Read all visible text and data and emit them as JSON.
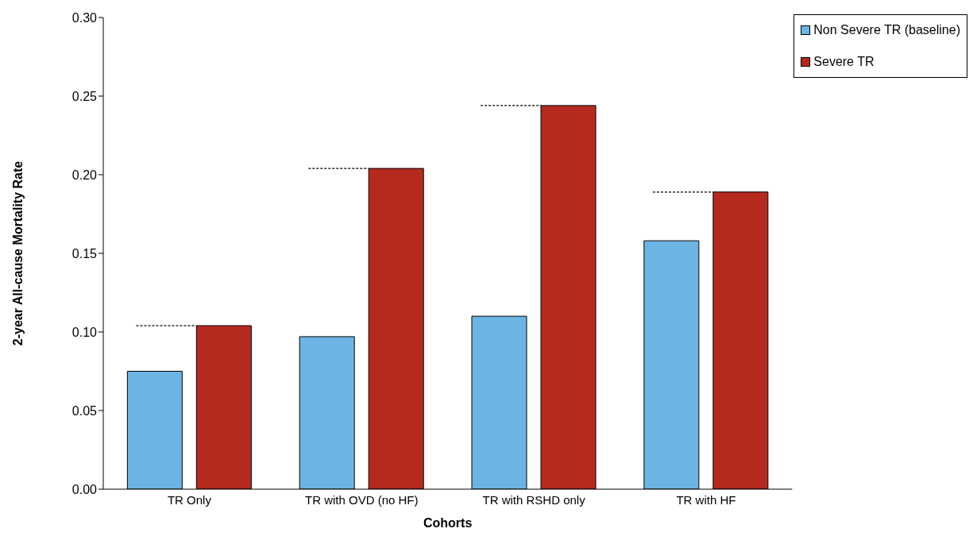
{
  "chart_data": {
    "type": "bar",
    "xlabel": "Cohorts",
    "ylabel": "2-year All-cause Mortality Rate",
    "categories": [
      "TR Only",
      "TR with OVD (no HF)",
      "TR with RSHD only",
      "TR with HF"
    ],
    "series": [
      {
        "name": "Non Severe TR (baseline)",
        "color": "#6cb4e4",
        "values": [
          0.075,
          0.097,
          0.11,
          0.158
        ]
      },
      {
        "name": "Severe TR",
        "color": "#b52a1e",
        "values": [
          0.104,
          0.204,
          0.244,
          0.189
        ]
      }
    ],
    "ylim": [
      0,
      0.3
    ],
    "yticks": [
      {
        "value": 0,
        "label": "0.00"
      },
      {
        "value": 0.05,
        "label": "0.05"
      },
      {
        "value": 0.1,
        "label": "0.10"
      },
      {
        "value": 0.15,
        "label": "0.15"
      },
      {
        "value": 0.2,
        "label": "0.20"
      },
      {
        "value": 0.25,
        "label": "0.25"
      },
      {
        "value": 0.3,
        "label": "0.30"
      }
    ],
    "ref_lines": [
      {
        "axis": "y",
        "value": 0.104,
        "color": "#000000",
        "line_style": "dotted"
      },
      {
        "axis": "y",
        "value": 0.204,
        "color": "#000000",
        "line_style": "dotted"
      },
      {
        "axis": "y",
        "value": 0.244,
        "color": "#000000",
        "line_style": "dotted"
      },
      {
        "axis": "y",
        "value": 0.189,
        "color": "#000000",
        "line_style": "dotted"
      }
    ],
    "grid": false,
    "legend": "top right"
  }
}
